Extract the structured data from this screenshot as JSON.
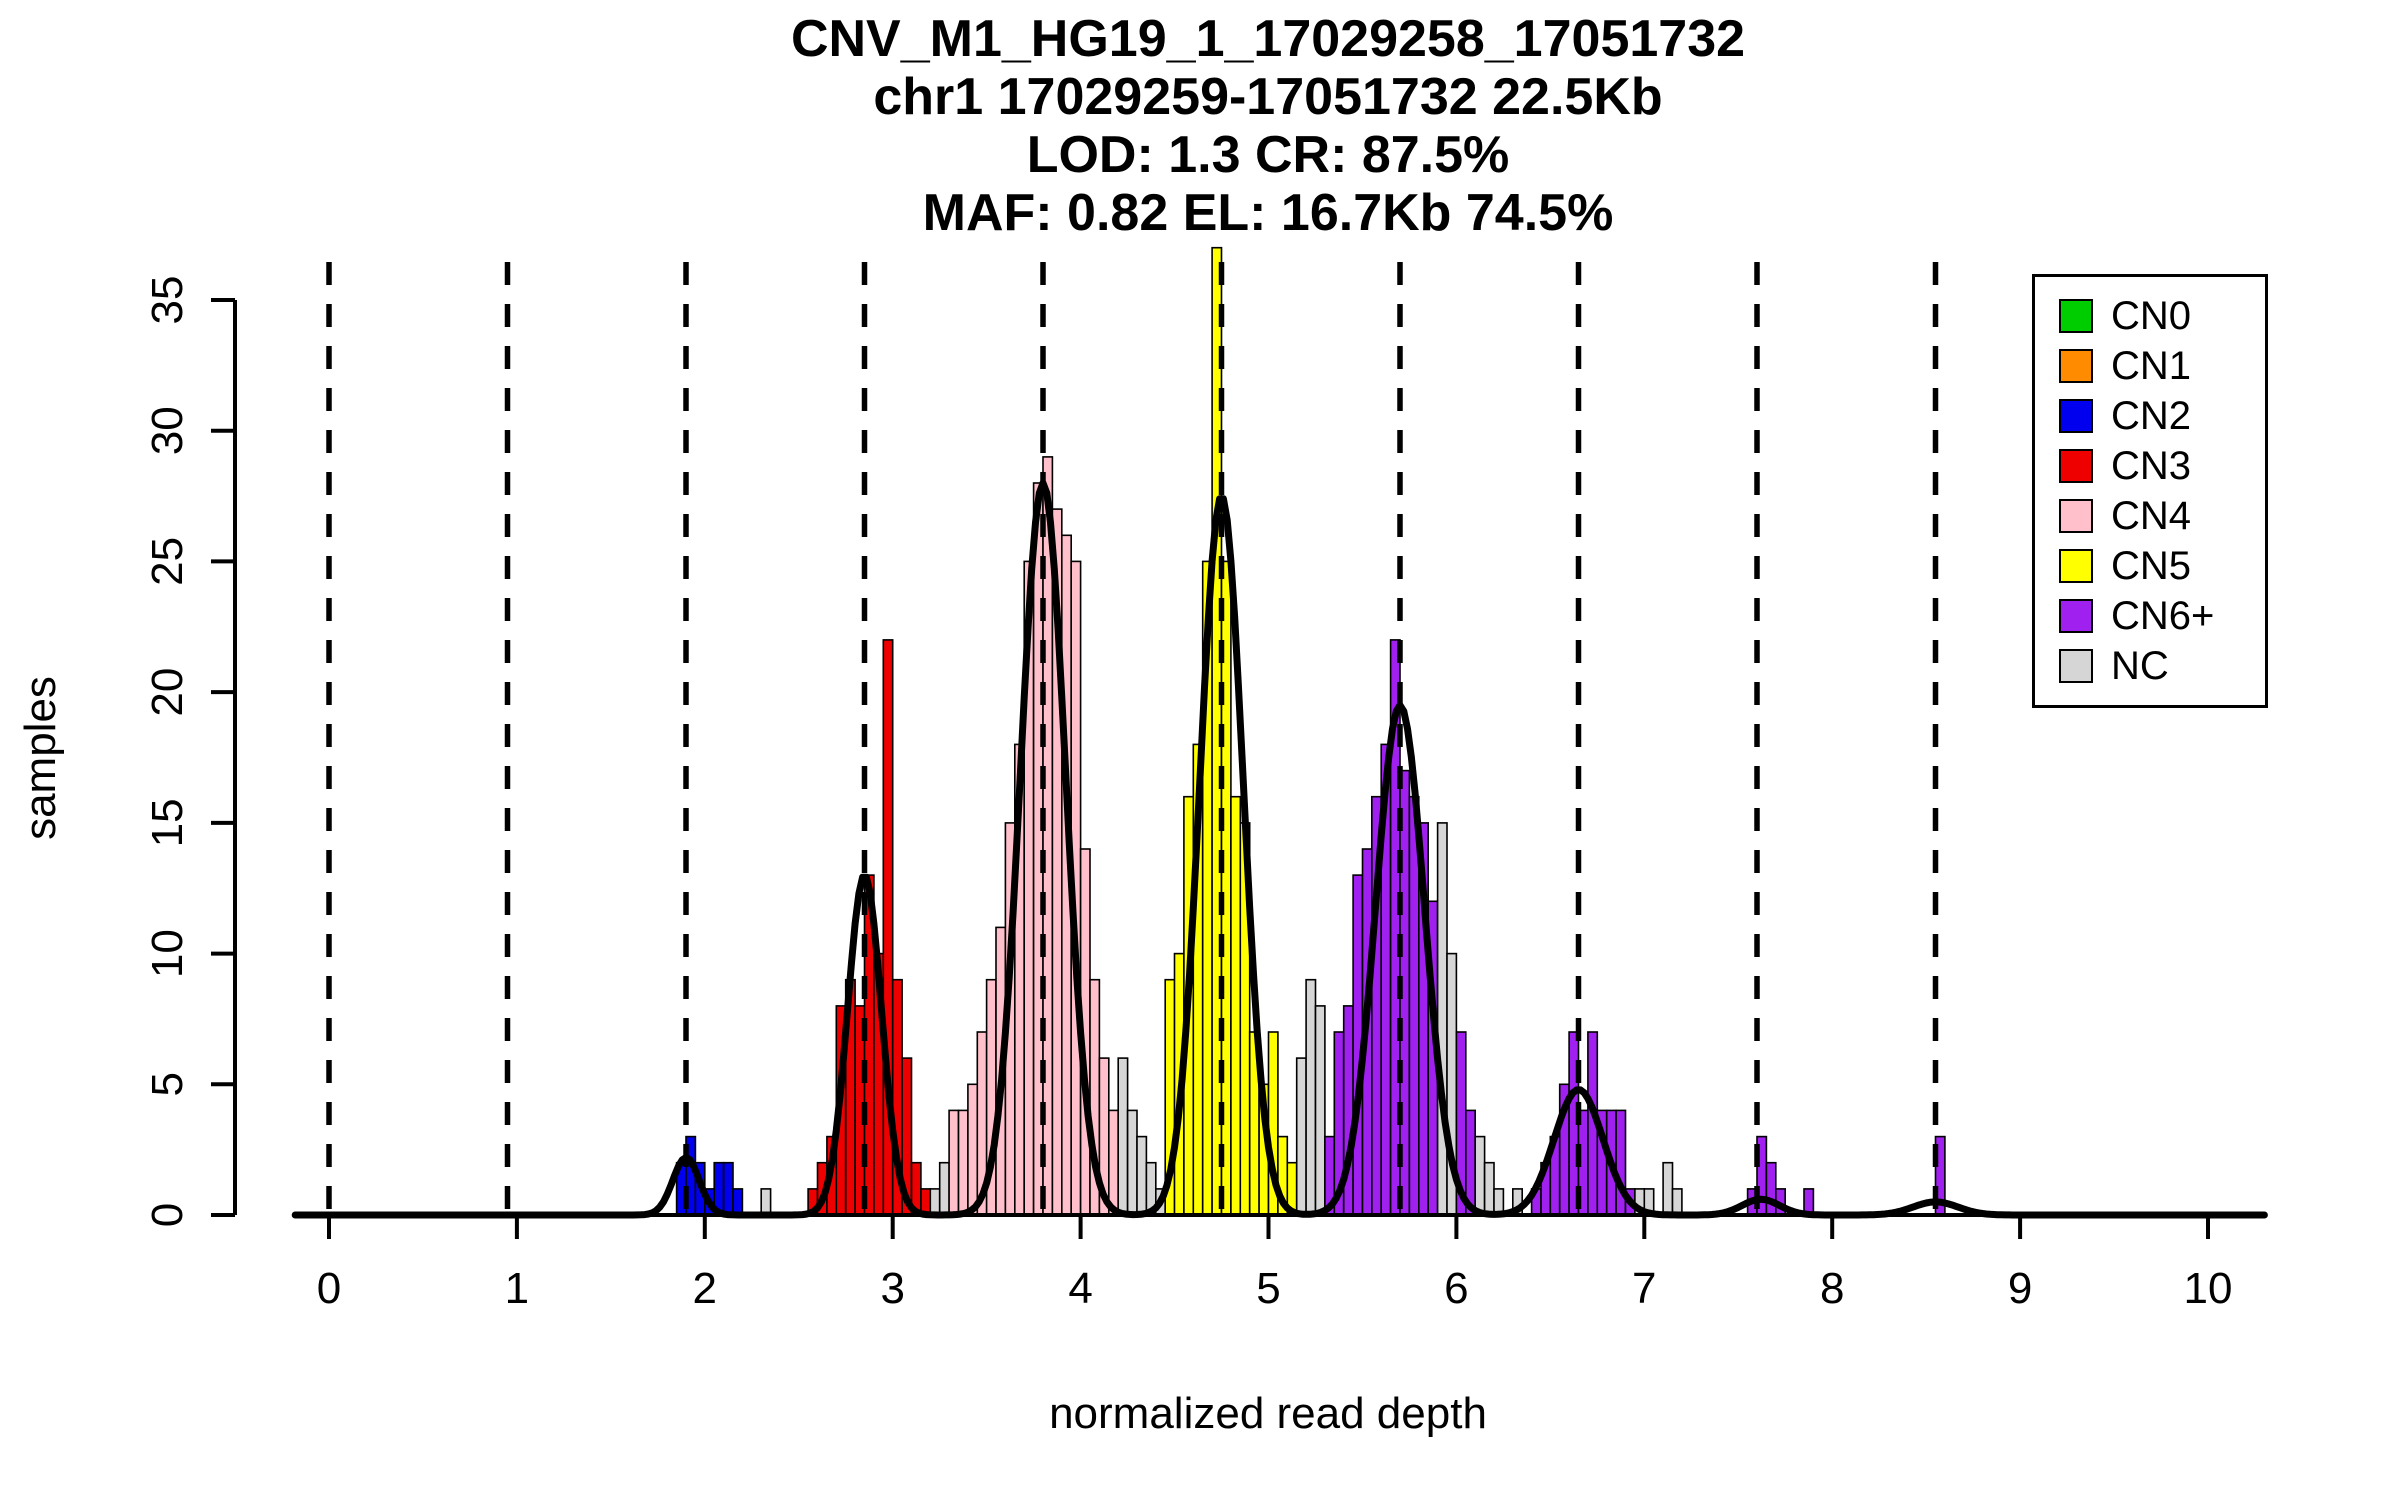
{
  "header": {
    "title_lines": [
      "CNV_M1_HG19_1_17029258_17051732",
      "chr1 17029259-17051732 22.5Kb",
      "LOD: 1.3 CR: 87.5%",
      "MAF: 0.82 EL: 16.7Kb 74.5%"
    ]
  },
  "chart_data": {
    "type": "histogram",
    "title": "CNV_M1_HG19_1_17029258_17051732",
    "subtitle_lines": [
      "chr1 17029259-17051732 22.5Kb",
      "LOD: 1.3 CR: 87.5%",
      "MAF: 0.82 EL: 16.7Kb 74.5%"
    ],
    "xlabel": "normalized read depth",
    "ylabel": "samples",
    "xlim": [
      0,
      10
    ],
    "ylim": [
      0,
      35
    ],
    "xticks": [
      0,
      1,
      2,
      3,
      4,
      5,
      6,
      7,
      8,
      9,
      10
    ],
    "yticks": [
      0,
      5,
      10,
      15,
      20,
      25,
      30,
      35
    ],
    "grid": false,
    "legend_position": "top-right",
    "bin_width": 0.05,
    "colors": {
      "CN0": "#00CD00",
      "CN1": "#FF8C00",
      "CN2": "#0000EE",
      "CN3": "#EE0000",
      "CN4": "#FFC0CB",
      "CN5": "#FFFF00",
      "CN6+": "#A020F0",
      "NC": "#D6D6D6"
    },
    "legend_labels": [
      "CN0",
      "CN1",
      "CN2",
      "CN3",
      "CN4",
      "CN5",
      "CN6+",
      "NC"
    ],
    "dashed_lines_x": [
      0,
      0.95,
      1.9,
      2.85,
      3.8,
      4.75,
      5.7,
      6.65,
      7.6,
      8.55
    ],
    "bars": [
      [
        1.85,
        2,
        "CN2"
      ],
      [
        1.9,
        3,
        "CN2"
      ],
      [
        1.95,
        2,
        "CN2"
      ],
      [
        2.0,
        1,
        "CN2"
      ],
      [
        2.05,
        2,
        "CN2"
      ],
      [
        2.1,
        2,
        "CN2"
      ],
      [
        2.15,
        1,
        "CN2"
      ],
      [
        2.3,
        1,
        "NC"
      ],
      [
        2.55,
        1,
        "CN3"
      ],
      [
        2.6,
        2,
        "CN3"
      ],
      [
        2.65,
        3,
        "CN3"
      ],
      [
        2.7,
        8,
        "CN3"
      ],
      [
        2.75,
        9,
        "CN3"
      ],
      [
        2.8,
        8,
        "CN3"
      ],
      [
        2.85,
        13,
        "CN3"
      ],
      [
        2.9,
        10,
        "CN3"
      ],
      [
        2.95,
        22,
        "CN3"
      ],
      [
        3.0,
        9,
        "CN3"
      ],
      [
        3.05,
        6,
        "CN3"
      ],
      [
        3.1,
        2,
        "CN3"
      ],
      [
        3.15,
        1,
        "CN3"
      ],
      [
        3.2,
        1,
        "NC"
      ],
      [
        3.25,
        2,
        "NC"
      ],
      [
        3.3,
        4,
        "CN4"
      ],
      [
        3.35,
        4,
        "CN4"
      ],
      [
        3.4,
        5,
        "CN4"
      ],
      [
        3.45,
        7,
        "CN4"
      ],
      [
        3.5,
        9,
        "CN4"
      ],
      [
        3.55,
        11,
        "CN4"
      ],
      [
        3.6,
        15,
        "CN4"
      ],
      [
        3.65,
        18,
        "CN4"
      ],
      [
        3.7,
        25,
        "CN4"
      ],
      [
        3.75,
        28,
        "CN4"
      ],
      [
        3.8,
        29,
        "CN4"
      ],
      [
        3.85,
        27,
        "CN4"
      ],
      [
        3.9,
        26,
        "CN4"
      ],
      [
        3.95,
        25,
        "CN4"
      ],
      [
        4.0,
        14,
        "CN4"
      ],
      [
        4.05,
        9,
        "CN4"
      ],
      [
        4.1,
        6,
        "CN4"
      ],
      [
        4.15,
        4,
        "CN4"
      ],
      [
        4.2,
        6,
        "NC"
      ],
      [
        4.25,
        4,
        "NC"
      ],
      [
        4.3,
        3,
        "NC"
      ],
      [
        4.35,
        2,
        "NC"
      ],
      [
        4.4,
        1,
        "NC"
      ],
      [
        4.45,
        9,
        "CN5"
      ],
      [
        4.5,
        10,
        "CN5"
      ],
      [
        4.55,
        16,
        "CN5"
      ],
      [
        4.6,
        18,
        "CN5"
      ],
      [
        4.65,
        25,
        "CN5"
      ],
      [
        4.7,
        37,
        "CN5"
      ],
      [
        4.75,
        25,
        "CN5"
      ],
      [
        4.8,
        16,
        "CN5"
      ],
      [
        4.85,
        15,
        "CN5"
      ],
      [
        4.9,
        7,
        "CN5"
      ],
      [
        4.95,
        5,
        "CN5"
      ],
      [
        5.0,
        7,
        "CN5"
      ],
      [
        5.05,
        3,
        "CN5"
      ],
      [
        5.1,
        2,
        "CN5"
      ],
      [
        5.15,
        6,
        "NC"
      ],
      [
        5.2,
        9,
        "NC"
      ],
      [
        5.25,
        8,
        "NC"
      ],
      [
        5.3,
        3,
        "CN6+"
      ],
      [
        5.35,
        7,
        "CN6+"
      ],
      [
        5.4,
        8,
        "CN6+"
      ],
      [
        5.45,
        13,
        "CN6+"
      ],
      [
        5.5,
        14,
        "CN6+"
      ],
      [
        5.55,
        16,
        "CN6+"
      ],
      [
        5.6,
        18,
        "CN6+"
      ],
      [
        5.65,
        22,
        "CN6+"
      ],
      [
        5.7,
        17,
        "CN6+"
      ],
      [
        5.75,
        16,
        "CN6+"
      ],
      [
        5.8,
        15,
        "CN6+"
      ],
      [
        5.85,
        12,
        "CN6+"
      ],
      [
        5.9,
        15,
        "NC"
      ],
      [
        5.95,
        10,
        "NC"
      ],
      [
        6.0,
        7,
        "CN6+"
      ],
      [
        6.05,
        4,
        "CN6+"
      ],
      [
        6.1,
        3,
        "NC"
      ],
      [
        6.15,
        2,
        "NC"
      ],
      [
        6.2,
        1,
        "NC"
      ],
      [
        6.3,
        1,
        "NC"
      ],
      [
        6.4,
        1,
        "CN6+"
      ],
      [
        6.45,
        2,
        "CN6+"
      ],
      [
        6.5,
        3,
        "CN6+"
      ],
      [
        6.55,
        5,
        "CN6+"
      ],
      [
        6.6,
        7,
        "CN6+"
      ],
      [
        6.65,
        4,
        "CN6+"
      ],
      [
        6.7,
        7,
        "CN6+"
      ],
      [
        6.75,
        4,
        "CN6+"
      ],
      [
        6.8,
        4,
        "CN6+"
      ],
      [
        6.85,
        4,
        "CN6+"
      ],
      [
        6.9,
        1,
        "CN6+"
      ],
      [
        6.95,
        1,
        "NC"
      ],
      [
        7.0,
        1,
        "NC"
      ],
      [
        7.1,
        2,
        "NC"
      ],
      [
        7.15,
        1,
        "NC"
      ],
      [
        7.55,
        1,
        "CN6+"
      ],
      [
        7.6,
        3,
        "CN6+"
      ],
      [
        7.65,
        2,
        "CN6+"
      ],
      [
        7.7,
        1,
        "CN6+"
      ],
      [
        7.85,
        1,
        "CN6+"
      ],
      [
        8.55,
        3,
        "CN6+"
      ]
    ],
    "density_curves": [
      {
        "mu": 1.9,
        "sigma": 0.07,
        "amp": 2.2
      },
      {
        "mu": 2.85,
        "sigma": 0.09,
        "amp": 13
      },
      {
        "mu": 3.8,
        "sigma": 0.12,
        "amp": 28
      },
      {
        "mu": 4.75,
        "sigma": 0.115,
        "amp": 27.5
      },
      {
        "mu": 5.7,
        "sigma": 0.13,
        "amp": 19.5
      },
      {
        "mu": 6.65,
        "sigma": 0.13,
        "amp": 4.8
      },
      {
        "mu": 7.62,
        "sigma": 0.1,
        "amp": 0.6
      },
      {
        "mu": 8.55,
        "sigma": 0.12,
        "amp": 0.5
      }
    ]
  }
}
